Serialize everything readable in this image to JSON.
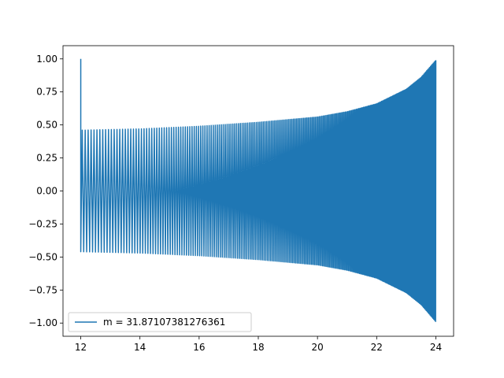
{
  "chart_data": {
    "type": "line",
    "title": "",
    "xlabel": "",
    "ylabel": "",
    "xlim": [
      11.4,
      24.6
    ],
    "ylim": [
      -1.1,
      1.1
    ],
    "xticks": [
      12,
      14,
      16,
      18,
      20,
      22,
      24
    ],
    "xtick_labels": [
      "12",
      "14",
      "16",
      "18",
      "20",
      "22",
      "24"
    ],
    "yticks": [
      -1.0,
      -0.75,
      -0.5,
      -0.25,
      0.0,
      0.25,
      0.5,
      0.75,
      1.0
    ],
    "ytick_labels": [
      "−1.00",
      "−0.75",
      "−0.50",
      "−0.25",
      "0.00",
      "0.25",
      "0.50",
      "0.75",
      "1.00"
    ],
    "grid": false,
    "legend_position": "lower-left",
    "series": [
      {
        "name": "m = 31.87107381276361",
        "color": "#1f77b4",
        "x_range": [
          12,
          24
        ],
        "start_value": 1.0,
        "envelope": [
          {
            "x": 12.0,
            "amplitude": 0.46
          },
          {
            "x": 14.0,
            "amplitude": 0.47
          },
          {
            "x": 16.0,
            "amplitude": 0.49
          },
          {
            "x": 18.0,
            "amplitude": 0.52
          },
          {
            "x": 20.0,
            "amplitude": 0.56
          },
          {
            "x": 21.0,
            "amplitude": 0.6
          },
          {
            "x": 22.0,
            "amplitude": 0.66
          },
          {
            "x": 23.0,
            "amplitude": 0.77
          },
          {
            "x": 23.5,
            "amplitude": 0.86
          },
          {
            "x": 24.0,
            "amplitude": 0.99
          }
        ]
      }
    ]
  }
}
